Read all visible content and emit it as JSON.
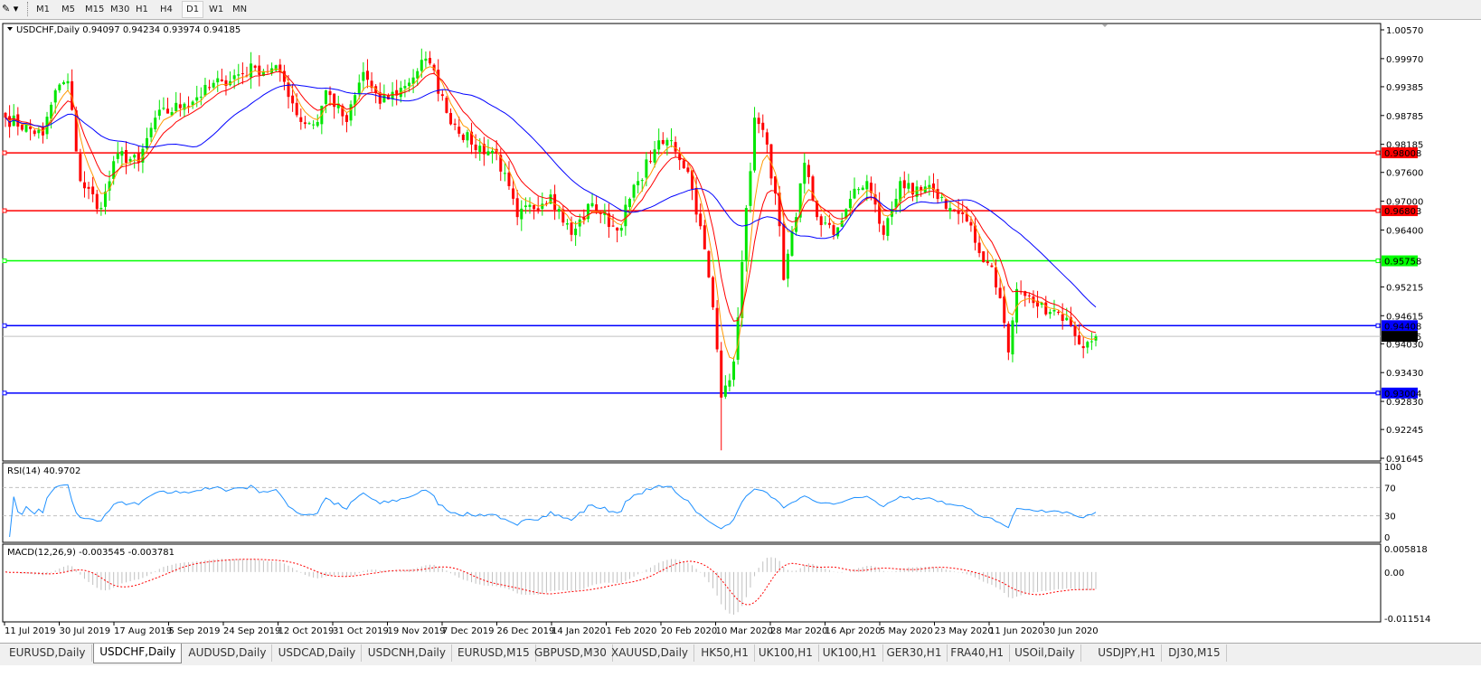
{
  "toolbar": {
    "timeframes": [
      "M1",
      "M5",
      "M15",
      "M30",
      "H1",
      "H4",
      "D1",
      "W1",
      "MN"
    ],
    "active": "D1"
  },
  "chart": {
    "header": "USDCHF,Daily  0.94097 0.94234 0.93974 0.94185",
    "symbol": "USDCHF",
    "period": "Daily",
    "ohlc_last": {
      "open": 0.94097,
      "high": 0.94234,
      "low": 0.93974,
      "close": 0.94185
    },
    "colors": {
      "bull": "#00e600",
      "bear": "#ff0000",
      "ma_fast": "#ff9900",
      "ma_mid": "#ff0000",
      "ma_slow": "#0000ff",
      "rsi": "#1e90ff",
      "macd_hist": "#c0c0c0",
      "macd_signal": "#ff0000"
    },
    "price_ticks": [
      "1.00570",
      "0.99970",
      "0.99385",
      "0.98785",
      "0.98185",
      "0.97600",
      "0.97000",
      "0.96400",
      "0.95215",
      "0.94615",
      "0.94030",
      "0.93430",
      "0.92830",
      "0.92245",
      "0.91645"
    ],
    "hlines": [
      {
        "price": 0.98008,
        "label": "0.98008",
        "color": "#ff0000"
      },
      {
        "price": 0.96803,
        "label": "0.96803",
        "color": "#ff0000"
      },
      {
        "price": 0.95758,
        "label": "0.95758",
        "color": "#00ff00"
      },
      {
        "price": 0.94408,
        "label": "0.94408",
        "color": "#0000ff"
      },
      {
        "price": 0.93004,
        "label": "0.93004",
        "color": "#0000ff"
      }
    ],
    "current_price": {
      "price": 0.94185,
      "label": "0.94185"
    },
    "date_ticks": [
      "11 Jul 2019",
      "30 Jul 2019",
      "17 Aug 2019",
      "5 Sep 2019",
      "24 Sep 2019",
      "12 Oct 2019",
      "31 Oct 2019",
      "19 Nov 2019",
      "7 Dec 2019",
      "26 Dec 2019",
      "14 Jan 2020",
      "1 Feb 2020",
      "20 Feb 2020",
      "10 Mar 2020",
      "28 Mar 2020",
      "16 Apr 2020",
      "5 May 2020",
      "23 May 2020",
      "11 Jun 2020",
      "30 Jun 2020"
    ]
  },
  "rsi": {
    "label": "RSI(14) 40.9702",
    "ticks": [
      "100",
      "70",
      "30",
      "0"
    ]
  },
  "macd": {
    "label": "MACD(12,26,9) -0.003545 -0.003781",
    "ticks": [
      "0.005818",
      "0.00",
      "-0.011514"
    ]
  },
  "chart_data": {
    "type": "candlestick",
    "ylim": [
      0.91645,
      1.0057
    ],
    "key_closes": [
      [
        "2019-07-11",
        0.9874
      ],
      [
        "2019-07-24",
        0.9837
      ],
      [
        "2019-07-29",
        0.9931
      ],
      [
        "2019-08-01",
        0.995
      ],
      [
        "2019-08-06",
        0.9742
      ],
      [
        "2019-08-13",
        0.9686
      ],
      [
        "2019-08-19",
        0.9799
      ],
      [
        "2019-08-26",
        0.978
      ],
      [
        "2019-08-30",
        0.9874
      ],
      [
        "2019-09-10",
        0.9903
      ],
      [
        "2019-09-23",
        0.995
      ],
      [
        "2019-10-03",
        0.9978
      ],
      [
        "2019-10-11",
        0.9969
      ],
      [
        "2019-10-18",
        0.9865
      ],
      [
        "2019-10-24",
        0.9865
      ],
      [
        "2019-10-28",
        0.9931
      ],
      [
        "2019-11-04",
        0.9865
      ],
      [
        "2019-11-08",
        0.9969
      ],
      [
        "2019-11-14",
        0.9903
      ],
      [
        "2019-11-22",
        0.994
      ],
      [
        "2019-11-29",
        0.9997
      ],
      [
        "2019-12-02",
        0.9987
      ],
      [
        "2019-12-06",
        0.9884
      ],
      [
        "2019-12-16",
        0.9818
      ],
      [
        "2019-12-24",
        0.9799
      ],
      [
        "2019-12-31",
        0.9667
      ],
      [
        "2020-01-10",
        0.9714
      ],
      [
        "2020-01-17",
        0.963
      ],
      [
        "2020-01-24",
        0.9696
      ],
      [
        "2020-02-03",
        0.9639
      ],
      [
        "2020-02-10",
        0.9742
      ],
      [
        "2020-02-14",
        0.9808
      ],
      [
        "2020-02-20",
        0.9827
      ],
      [
        "2020-02-26",
        0.9761
      ],
      [
        "2020-03-02",
        0.9648
      ],
      [
        "2020-03-05",
        0.9479
      ],
      [
        "2020-03-09",
        0.9291
      ],
      [
        "2020-03-12",
        0.9366
      ],
      [
        "2020-03-16",
        0.9573
      ],
      [
        "2020-03-19",
        0.9874
      ],
      [
        "2020-03-24",
        0.9818
      ],
      [
        "2020-03-27",
        0.9648
      ],
      [
        "2020-03-30",
        0.9536
      ],
      [
        "2020-04-02",
        0.9667
      ],
      [
        "2020-04-06",
        0.978
      ],
      [
        "2020-04-09",
        0.9667
      ],
      [
        "2020-04-15",
        0.963
      ],
      [
        "2020-04-21",
        0.9705
      ],
      [
        "2020-04-27",
        0.9742
      ],
      [
        "2020-05-01",
        0.963
      ],
      [
        "2020-05-07",
        0.9742
      ],
      [
        "2020-05-12",
        0.9714
      ],
      [
        "2020-05-19",
        0.9723
      ],
      [
        "2020-05-25",
        0.9686
      ],
      [
        "2020-05-29",
        0.9658
      ],
      [
        "2020-06-03",
        0.9592
      ],
      [
        "2020-06-08",
        0.9563
      ],
      [
        "2020-06-10",
        0.9498
      ],
      [
        "2020-06-12",
        0.9385
      ],
      [
        "2020-06-16",
        0.9517
      ],
      [
        "2020-06-22",
        0.9488
      ],
      [
        "2020-06-30",
        0.9469
      ],
      [
        "2020-07-03",
        0.9441
      ],
      [
        "2020-07-08",
        0.9394
      ],
      [
        "2020-07-13",
        0.94185
      ]
    ],
    "min_low": 0.9181,
    "indicators": [
      "MA fast",
      "MA mid",
      "MA slow",
      "RSI(14)",
      "MACD(12,26,9)"
    ]
  },
  "tabs": {
    "items": [
      "EURUSD,Daily",
      "USDCHF,Daily",
      "AUDUSD,Daily",
      "USDCAD,Daily",
      "USDCNH,Daily",
      "EURUSD,M15",
      "GBPUSD,M30",
      "XAUUSD,Daily",
      "HK50,H1",
      "UK100,H1",
      "UK100,H1",
      "GER30,H1",
      "FRA40,H1",
      "USOil,Daily",
      "USDJPY,H1",
      "DJ30,M15"
    ],
    "active": 1
  }
}
